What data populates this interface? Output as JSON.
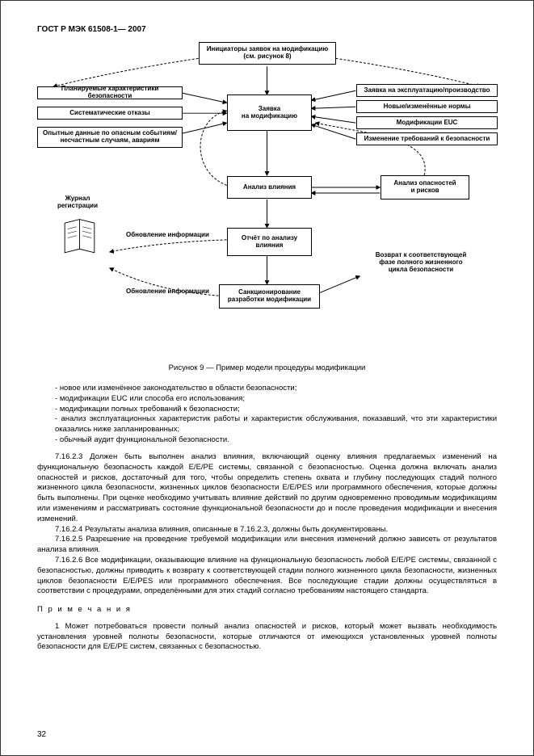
{
  "header": "ГОСТ Р МЭК 61508-1— 2007",
  "diagram": {
    "top_box": "Инициаторы заявок на модификацию\n(см. рисунок 8)",
    "left_inputs": [
      "Планируемые характеристики безопасности",
      "Систематические отказы",
      "Опытные данные по опасным событиям/\nнесчастным случаям, авариям"
    ],
    "right_inputs": [
      "Заявка на эксплуатацию/производство",
      "Новые/изменённые нормы",
      "Модификации EUC",
      "Изменение требований к безопасности"
    ],
    "center_boxes": {
      "request": "Заявка\nна модификацию",
      "impact": "Анализ влияния",
      "report": "Отчёт по анализу\nвлияния",
      "auth": "Санкционирование\nразработки модификации"
    },
    "right_side": {
      "hazard": "Анализ опасностей\nи рисков",
      "return": "Возврат к соответствующей\nфазе полного жизненного\nцикла безопасности"
    },
    "left_side": {
      "journal": "Журнал\nрегистрации",
      "update1": "Обновление информации",
      "update2": "Обновление информации"
    }
  },
  "caption": "Рисунок 9 — Пример модели процедуры модификации",
  "bullets": [
    "новое или изменённое законодательство в области безопасности;",
    "модификации EUC или способа его использования;",
    "модификации полных требований к безопасности;",
    "анализ эксплуатационных характеристик работы и характеристик обслуживания, показавший, что эти характеристики оказались ниже запланированных;",
    "обычный аудит функциональной безопасности."
  ],
  "paras": [
    "7.16.2.3 Должен быть выполнен анализ влияния, включающий оценку влияния предлагаемых изменений на функциональную безопасность каждой E/E/PE системы, связанной с безопасностью. Оценка должна включать анализ опасностей и рисков, достаточный для того, чтобы определить степень охвата и глубину последующих стадий полного жизненного цикла безопасности, жизненных циклов безопасности E/E/PES или программного обеспечения, которые должны быть выполнены. При оценке необходимо учитывать влияние действий по другим одновременно проводимым модификациям или изменениям и рассматривать состояние функциональной безопасности до и после проведения модификации и внесения изменений.",
    "7.16.2.4 Результаты анализа влияния, описанные в 7.16.2.3, должны быть документированы.",
    "7.16.2.5 Разрешение на проведение требуемой модификации или внесения изменений должно зависеть от результатов анализа влияния.",
    "7.16.2.6 Все модификации, оказывающие влияние на функциональную безопасность любой E/E/PE системы, связанной с безопасностью, должны приводить к возврату к соответствующей стадии полного жизненного цикла безопасности, жизненных циклов безопасности E/E/PES или программного обеспечения. Все последующие стадии должны осуществляться в соответствии с процедурами, определёнными для этих стадий согласно требованиям настоящего стандарта."
  ],
  "notes_title": "П р и м е ч а н и я",
  "note1": "1 Может потребоваться провести полный анализ опасностей и рисков, который может вызвать необходимость установления уровней полноты безопасности, которые отличаются от имеющихся установленных уровней полноты безопасности для E/E/PE систем, связанных с безопасностью.",
  "page_number": "32"
}
